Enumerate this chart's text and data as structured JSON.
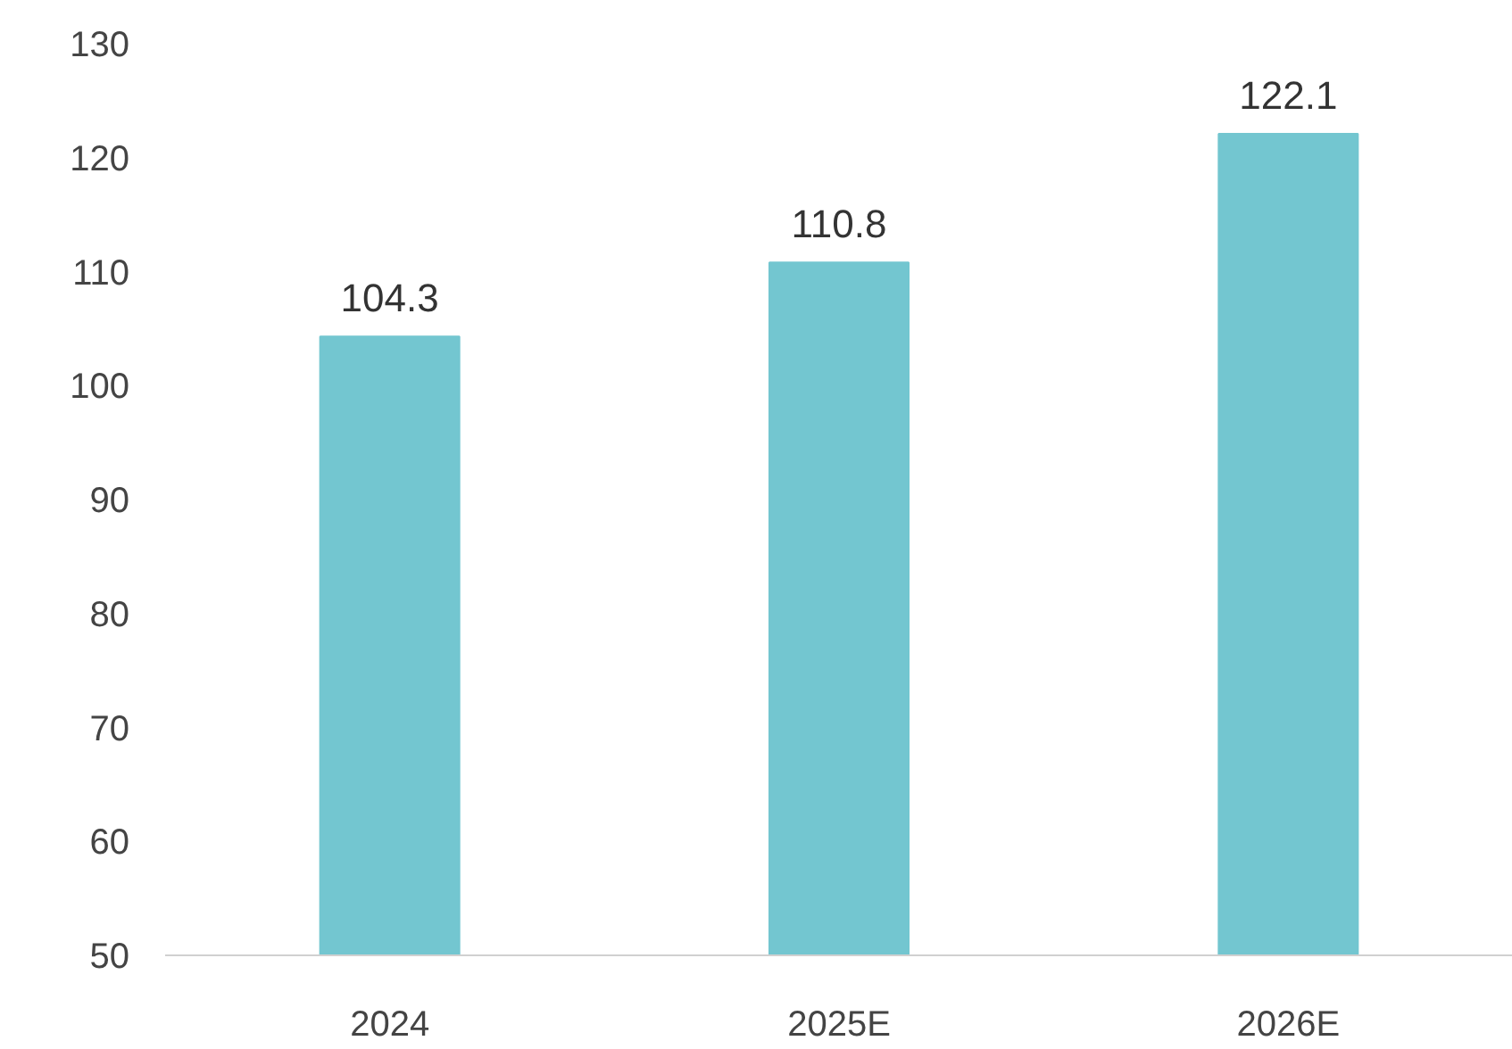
{
  "chart_data": {
    "type": "bar",
    "categories": [
      "2024",
      "2025E",
      "2026E"
    ],
    "values": [
      104.3,
      110.8,
      122.1
    ],
    "color": "#73c6d0",
    "ylim": [
      50,
      130
    ],
    "yticks": [
      50,
      60,
      70,
      80,
      90,
      100,
      110,
      120,
      130
    ],
    "data_labels": true,
    "grid": false
  }
}
